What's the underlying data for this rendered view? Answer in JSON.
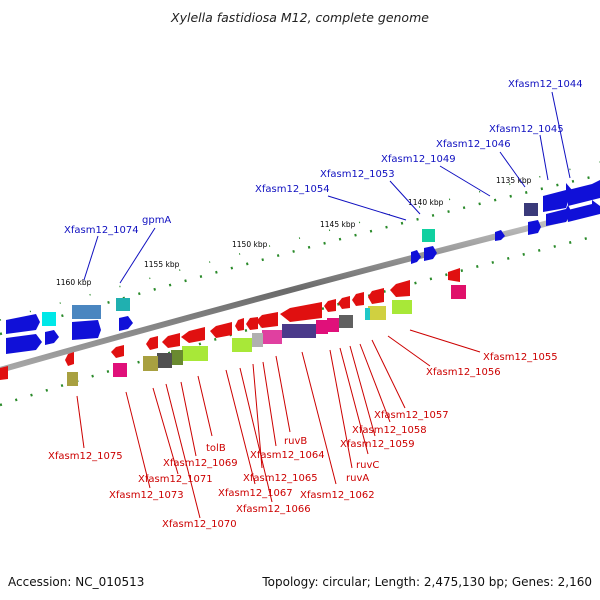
{
  "title": "Xylella fastidiosa M12, complete genome",
  "footer": {
    "accession": "Accession: NC_010513",
    "topology": "Topology: circular; Length: 2,475,130 bp; Genes: 2,160"
  },
  "colors": {
    "forward_label": "#1010c0",
    "reverse_label": "#cc0000",
    "backbone": "#808080"
  },
  "scale_ticks": [
    "1135 kbp",
    "1140 kbp",
    "1145 kbp",
    "1150 kbp",
    "1155 kbp",
    "1160 kbp"
  ],
  "forward_labels": [
    "Xfasm12_1044",
    "Xfasm12_1045",
    "Xfasm12_1046",
    "Xfasm12_1049",
    "Xfasm12_1053",
    "Xfasm12_1054",
    "gpmA",
    "Xfasm12_1074"
  ],
  "reverse_labels": [
    "Xfasm12_1055",
    "Xfasm12_1056",
    "Xfasm12_1057",
    "Xfasm12_1058",
    "Xfasm12_1059",
    "ruvC",
    "ruvA",
    "Xfasm12_1062",
    "ruvB",
    "Xfasm12_1064",
    "Xfasm12_1065",
    "Xfasm12_1066",
    "Xfasm12_1067",
    "tolB",
    "Xfasm12_1069",
    "Xfasm12_1070",
    "Xfasm12_1071",
    "Xfasm12_1073",
    "Xfasm12_1075"
  ]
}
